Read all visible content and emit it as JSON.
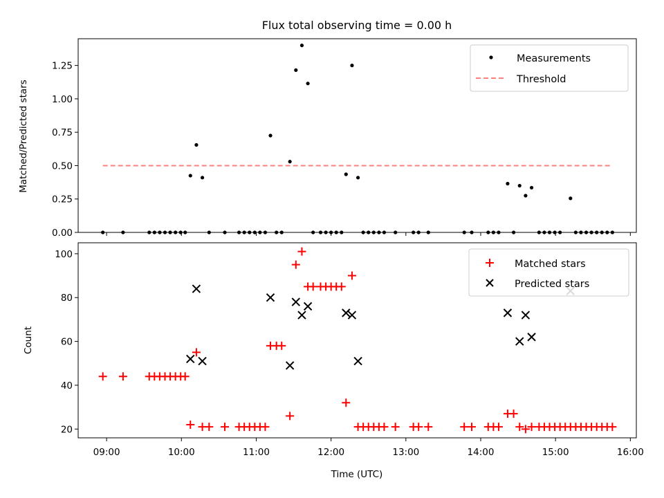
{
  "chart_data": [
    {
      "type": "scatter",
      "title": "Flux total observing time = 0.00 h",
      "xlabel": "",
      "ylabel": "Matched/Predicted stars",
      "xlim": [
        8.62,
        16.08
      ],
      "ylim": [
        0,
        1.45
      ],
      "xticks": [
        9,
        10,
        11,
        12,
        13,
        14,
        15,
        16
      ],
      "xtick_labels": [
        "",
        "",
        "",
        "",
        "",
        "",
        "",
        ""
      ],
      "yticks": [
        0,
        0.25,
        0.5,
        0.75,
        1.0,
        1.25
      ],
      "ytick_labels": [
        "0.00",
        "0.25",
        "0.50",
        "0.75",
        "1.00",
        "1.25"
      ],
      "legend_position": "top-right",
      "grid": false,
      "series": [
        {
          "name": "Measurements",
          "kind": "scatter",
          "marker": "dot",
          "color": "#000000",
          "x": [
            8.95,
            9.22,
            9.57,
            9.64,
            9.71,
            9.78,
            9.85,
            9.92,
            9.99,
            10.05,
            10.12,
            10.2,
            10.28,
            10.37,
            10.58,
            10.77,
            10.84,
            10.91,
            10.98,
            11.05,
            11.12,
            11.19,
            11.27,
            11.34,
            11.45,
            11.53,
            11.61,
            11.69,
            11.76,
            11.86,
            11.93,
            12.0,
            12.07,
            12.14,
            12.2,
            12.28,
            12.36,
            12.43,
            12.5,
            12.57,
            12.64,
            12.71,
            12.86,
            13.1,
            13.17,
            13.3,
            13.78,
            13.88,
            14.1,
            14.17,
            14.24,
            14.36,
            14.44,
            14.52,
            14.6,
            14.68,
            14.78,
            14.85,
            14.92,
            14.99,
            15.06,
            15.2,
            15.27,
            15.34,
            15.41,
            15.48,
            15.55,
            15.62,
            15.69,
            15.76
          ],
          "y": [
            0,
            0,
            0,
            0,
            0,
            0,
            0,
            0,
            0,
            0,
            0.425,
            0.655,
            0.41,
            0,
            0,
            0,
            0,
            0,
            0,
            0,
            0,
            0.725,
            0,
            0,
            0.53,
            1.215,
            1.4,
            1.115,
            0,
            0,
            0,
            0,
            0,
            0,
            0.435,
            1.25,
            0.41,
            0,
            0,
            0,
            0,
            0,
            0,
            0,
            0,
            0,
            0,
            0,
            0,
            0,
            0,
            0.365,
            0,
            0.35,
            0.275,
            0.335,
            0,
            0,
            0,
            0,
            0,
            0.255,
            0,
            0,
            0,
            0,
            0,
            0,
            0,
            0
          ]
        },
        {
          "name": "Threshold",
          "kind": "line",
          "style": "dashed",
          "color": "#ff7f7f",
          "x": [
            8.95,
            15.76
          ],
          "y": [
            0.5,
            0.5
          ]
        }
      ]
    },
    {
      "type": "scatter",
      "title": "",
      "xlabel": "Time (UTC)",
      "ylabel": "Count",
      "xlim": [
        8.62,
        16.08
      ],
      "ylim": [
        16,
        105
      ],
      "xticks": [
        9,
        10,
        11,
        12,
        13,
        14,
        15,
        16
      ],
      "xtick_labels": [
        "09:00",
        "10:00",
        "11:00",
        "12:00",
        "13:00",
        "14:00",
        "15:00",
        "16:00"
      ],
      "yticks": [
        20,
        40,
        60,
        80,
        100
      ],
      "ytick_labels": [
        "20",
        "40",
        "60",
        "80",
        "100"
      ],
      "legend_position": "top-right",
      "grid": false,
      "series": [
        {
          "name": "Matched stars",
          "kind": "scatter",
          "marker": "plus",
          "color": "#ff0000",
          "x": [
            8.95,
            9.22,
            9.57,
            9.64,
            9.71,
            9.78,
            9.85,
            9.92,
            9.99,
            10.05,
            10.12,
            10.2,
            10.28,
            10.37,
            10.58,
            10.77,
            10.84,
            10.91,
            10.98,
            11.05,
            11.12,
            11.19,
            11.27,
            11.34,
            11.45,
            11.53,
            11.61,
            11.69,
            11.76,
            11.86,
            11.93,
            12.0,
            12.07,
            12.14,
            12.2,
            12.28,
            12.36,
            12.43,
            12.5,
            12.57,
            12.64,
            12.71,
            12.86,
            13.1,
            13.17,
            13.3,
            13.78,
            13.88,
            14.1,
            14.17,
            14.24,
            14.36,
            14.44,
            14.52,
            14.6,
            14.68,
            14.78,
            14.85,
            14.92,
            14.99,
            15.06,
            15.13,
            15.2,
            15.27,
            15.34,
            15.41,
            15.48,
            15.55,
            15.62,
            15.69,
            15.76
          ],
          "y": [
            44,
            44,
            44,
            44,
            44,
            44,
            44,
            44,
            44,
            44,
            22,
            55,
            21,
            21,
            21,
            21,
            21,
            21,
            21,
            21,
            21,
            58,
            58,
            58,
            26,
            95,
            101,
            85,
            85,
            85,
            85,
            85,
            85,
            85,
            32,
            90,
            21,
            21,
            21,
            21,
            21,
            21,
            21,
            21,
            21,
            21,
            21,
            21,
            21,
            21,
            21,
            27,
            27,
            21,
            20,
            21,
            21,
            21,
            21,
            21,
            21,
            21,
            21,
            21,
            21,
            21,
            21,
            21,
            21,
            21,
            21
          ]
        },
        {
          "name": "Predicted stars",
          "kind": "scatter",
          "marker": "x",
          "color": "#000000",
          "x": [
            10.12,
            10.2,
            10.28,
            11.19,
            11.45,
            11.53,
            11.61,
            11.69,
            12.2,
            12.28,
            12.36,
            14.36,
            14.52,
            14.6,
            14.68,
            15.2
          ],
          "y": [
            52,
            84,
            51,
            80,
            49,
            78,
            72,
            76,
            73,
            72,
            51,
            73,
            60,
            72,
            62,
            83
          ]
        }
      ]
    }
  ]
}
